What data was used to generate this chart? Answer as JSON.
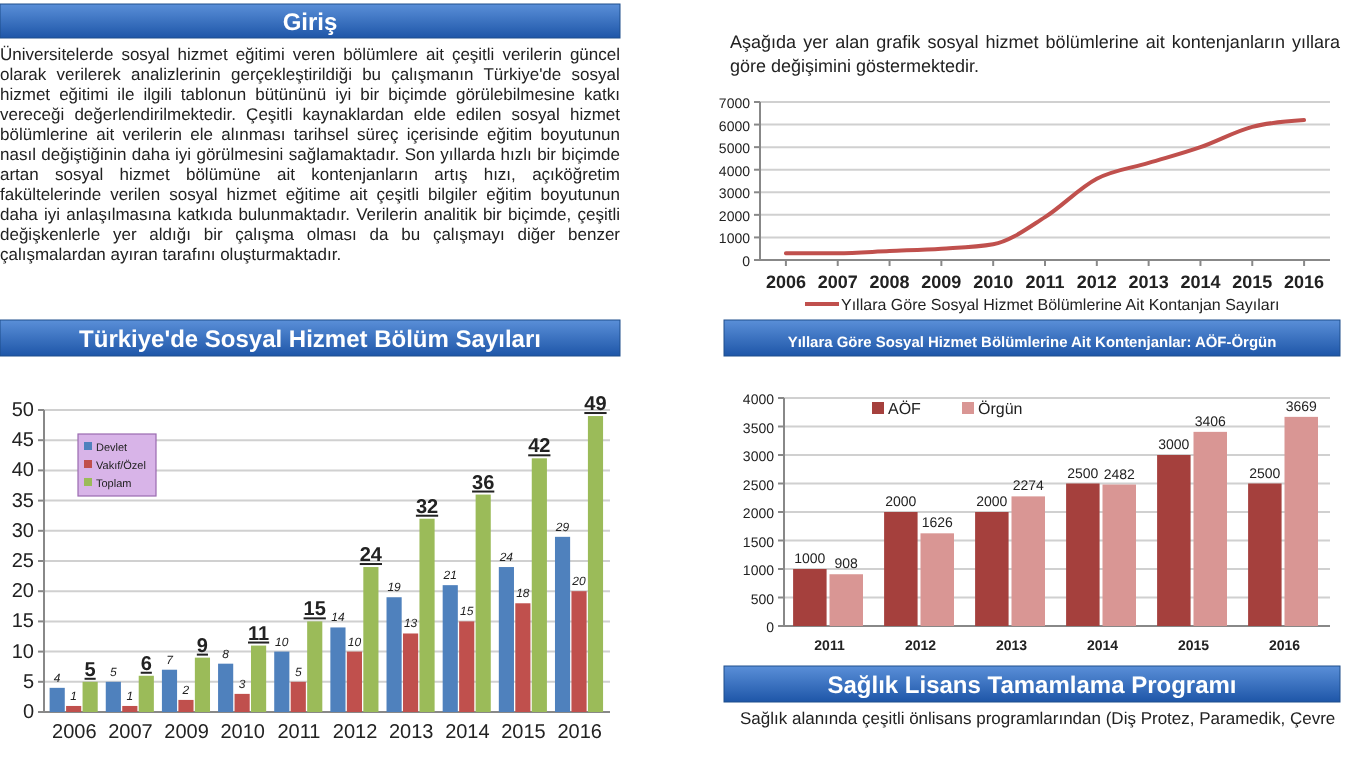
{
  "chart_data": [
    {
      "type": "other",
      "title": "Giriş",
      "annotations": [
        "Üniversitelerde sosyal hizmet eğitimi veren bölümlere ait çeşitli verilerin güncel olarak verilerek analizlerinin gerçekleştirildiği bu çalışmanın Türkiye'de sosyal hizmet eğitimi ile ilgili tablonun bütününü iyi bir biçimde görülebilmesine katkı vereceği değerlendirilmektedir. Çeşitli kaynaklardan elde edilen sosyal hizmet bölümlerine ait verilerin ele alınması tarihsel süreç içerisinde eğitim boyutunun nasıl değiştiğinin daha iyi görülmesini sağlamaktadır. Son yıllarda hızlı bir biçimde artan sosyal hizmet bölümüne ait kontenjanların artış hızı, açıköğretim fakültelerinde verilen sosyal hizmet eğitime ait çeşitli bilgiler eğitim boyutunun daha iyi anlaşılmasına katkıda bulunmaktadır. Verilerin analitik bir biçimde, çeşitli değişkenlerle yer aldığı bir çalışma olması da bu çalışmayı diğer benzer çalışmalardan ayıran tarafını oluşturmaktadır."
      ]
    },
    {
      "type": "bar",
      "title": "Türkiye'de Sosyal Hizmet Bölüm Sayıları",
      "categories": [
        "2006",
        "2007",
        "2009",
        "2010",
        "2011",
        "2012",
        "2013",
        "2014",
        "2015",
        "2016"
      ],
      "series": [
        {
          "name": "Devlet",
          "color": "#4f81bd",
          "values": [
            4,
            5,
            7,
            8,
            10,
            14,
            19,
            21,
            24,
            29
          ]
        },
        {
          "name": "Vakıf/Özel",
          "color": "#c0504d",
          "values": [
            1,
            1,
            2,
            3,
            5,
            10,
            13,
            15,
            18,
            20
          ]
        },
        {
          "name": "Toplam",
          "color": "#9bbb59",
          "values": [
            5,
            6,
            9,
            11,
            15,
            24,
            32,
            36,
            42,
            49
          ]
        }
      ],
      "ylim": [
        0,
        50
      ],
      "yticks": [
        0,
        5,
        10,
        15,
        20,
        25,
        30,
        35,
        40,
        45,
        50
      ],
      "grid": "y",
      "legend": "top left",
      "data_labels": true
    },
    {
      "type": "line",
      "title": "Aşağıda yer alan grafik sosyal hizmet bölümlerine ait kontenjanların yıllara göre değişimini göstermektedir.",
      "x": [
        2006,
        2007,
        2008,
        2009,
        2010,
        2011,
        2012,
        2013,
        2014,
        2015,
        2016
      ],
      "series": [
        {
          "name": "Yıllara Göre Sosyal Hizmet Bölümlerine Ait Kontanjan Sayıları",
          "color": "#c0504d",
          "values": [
            300,
            300,
            400,
            500,
            700,
            1900,
            3600,
            4300,
            5000,
            5900,
            6200
          ]
        }
      ],
      "xlim": [
        2005.5,
        2016.5
      ],
      "xticks": [
        2006,
        2007,
        2008,
        2009,
        2010,
        2011,
        2012,
        2013,
        2014,
        2015,
        2016
      ],
      "ylim": [
        0,
        7000
      ],
      "yticks": [
        0,
        1000,
        2000,
        3000,
        4000,
        5000,
        6000,
        7000
      ],
      "grid": "y",
      "legend": "bottom"
    },
    {
      "type": "bar",
      "title": "Yıllara Göre Sosyal Hizmet Bölümlerine Ait Kontenjanlar: AÖF-Örgün",
      "categories": [
        "2011",
        "2012",
        "2013",
        "2014",
        "2015",
        "2016"
      ],
      "series": [
        {
          "name": "AÖF",
          "color": "#a5403d",
          "values": [
            1000,
            2000,
            2000,
            2500,
            3000,
            2500
          ]
        },
        {
          "name": "Örgün",
          "color": "#d99694",
          "values": [
            908,
            1626,
            2274,
            2482,
            3406,
            3669
          ]
        }
      ],
      "ylim": [
        0,
        4000
      ],
      "yticks": [
        0,
        500,
        1000,
        1500,
        2000,
        2500,
        3000,
        3500,
        4000
      ],
      "grid": "y",
      "legend": "top left",
      "data_labels": true
    },
    {
      "type": "other",
      "title": "Sağlık Lisans Tamamlama Programı",
      "annotations": [
        "Sağlık alanında çeşitli önlisans programlarından (Diş Protez, Paramedik, Çevre"
      ]
    }
  ]
}
